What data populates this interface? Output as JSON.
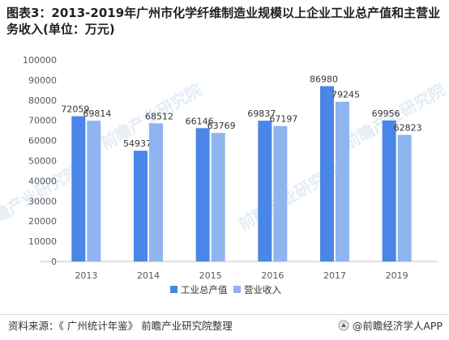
{
  "title": "图表3：2013-2019年广州市化学纤维制造业规模以上企业工业总产值和主营业务收入(单位：万元)",
  "source": "资料来源：《 广州统计年鉴》 前瞻产业研究院整理",
  "brand": "@前瞻经济学人APP",
  "watermark": "前瞻产业研究院",
  "colors": {
    "series1": "#4a86e8",
    "series2": "#8fb4f0",
    "axis": "#bfbfbf",
    "text": "#595959"
  },
  "chart_data": {
    "type": "bar",
    "categories": [
      "2013",
      "2014",
      "2015",
      "2016",
      "2017",
      "2019"
    ],
    "series": [
      {
        "name": "工业总产值",
        "values": [
          72059,
          54937,
          66146,
          69837,
          86980,
          69956
        ]
      },
      {
        "name": "营业收入",
        "values": [
          69814,
          68512,
          63769,
          67197,
          79245,
          62823
        ]
      }
    ],
    "yticks": [
      0,
      10000,
      20000,
      30000,
      40000,
      50000,
      60000,
      70000,
      80000,
      90000,
      100000
    ],
    "ylim": [
      0,
      100000
    ],
    "grid": false,
    "legend_position": "bottom"
  }
}
